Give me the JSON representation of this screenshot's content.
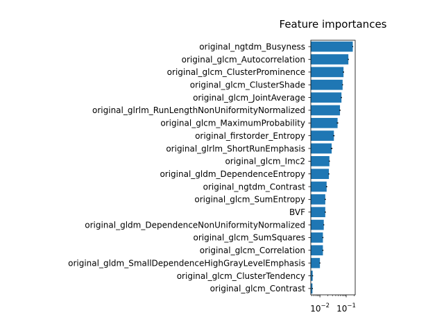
{
  "chart_data": {
    "type": "bar",
    "orientation": "horizontal",
    "title": "Feature importances",
    "xlabel": "",
    "ylabel": "",
    "x_scale": "log",
    "xlim": [
      0.0045,
      0.22
    ],
    "x_ticks": [
      {
        "value": 0.01,
        "base": "10",
        "exp": "−2"
      },
      {
        "value": 0.1,
        "base": "10",
        "exp": "−1"
      }
    ],
    "grid": false,
    "bar_color": "#1f77b4",
    "error_color": "#000000",
    "categories": [
      "original_ngtdm_Busyness",
      "original_glcm_Autocorrelation",
      "original_glcm_ClusterProminence",
      "original_glcm_ClusterShade",
      "original_glcm_JointAverage",
      "original_glrlm_RunLengthNonUniformityNormalized",
      "original_glcm_MaximumProbability",
      "original_firstorder_Entropy",
      "original_glrlm_ShortRunEmphasis",
      "original_glcm_Imc2",
      "original_gldm_DependenceEntropy",
      "original_ngtdm_Contrast",
      "original_glcm_SumEntropy",
      "BVF",
      "original_gldm_DependenceNonUniformityNormalized",
      "original_glcm_SumSquares",
      "original_glcm_Correlation",
      "original_gldm_SmallDependenceHighGrayLevelEmphasis",
      "original_glcm_ClusterTendency",
      "original_glcm_Contrast"
    ],
    "values": [
      0.178,
      0.121,
      0.079,
      0.073,
      0.066,
      0.058,
      0.047,
      0.034,
      0.028,
      0.023,
      0.022,
      0.018,
      0.016,
      0.016,
      0.014,
      0.013,
      0.013,
      0.01,
      0.0053,
      0.0052
    ],
    "errors": [
      0.006,
      0.005,
      0.004,
      0.003,
      0.003,
      0.003,
      0.003,
      0.002,
      0.002,
      0.001,
      0.001,
      0.001,
      0.0008,
      0.0008,
      0.0006,
      0.0006,
      0.0006,
      0.0004,
      0.0002,
      0.0002
    ]
  }
}
